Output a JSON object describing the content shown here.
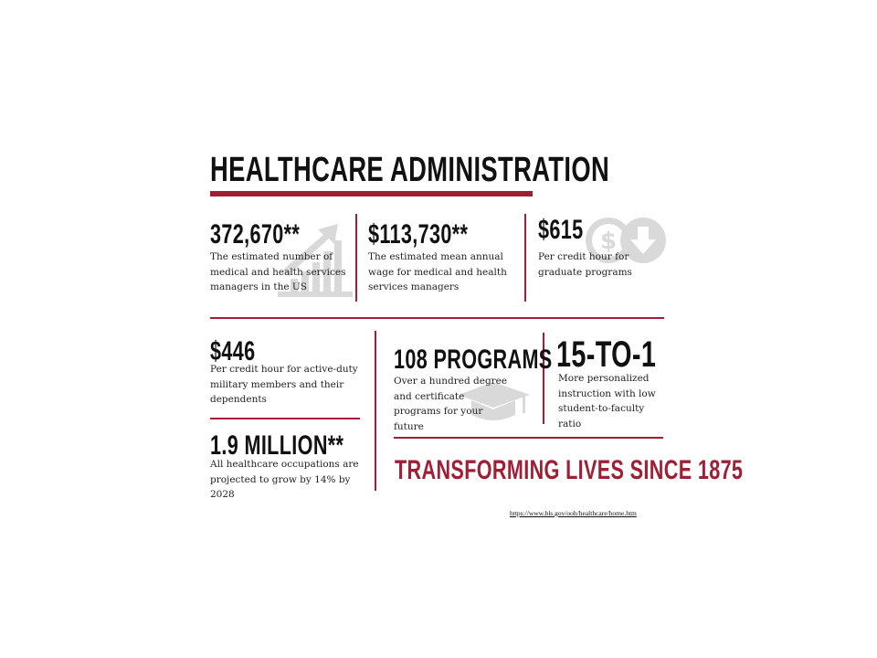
{
  "title": "HEALTHCARE ADMINISTRATION",
  "accent_color": "#a01f35",
  "icon_color": "#d9d9d9",
  "stats": {
    "managers": {
      "value": "372,670**",
      "description": "The estimated number of medical and health services managers in the US",
      "icon": "growth-chart-icon"
    },
    "wage": {
      "value": "$113,730**",
      "description": "The estimated mean annual wage for medical and health services managers"
    },
    "graduate": {
      "value": "$615",
      "description": "Per credit hour for graduate programs",
      "icon": "dollar-down-icon"
    },
    "military": {
      "value": "$446",
      "description": "Per credit hour for active-duty military members and their dependents"
    },
    "occupations": {
      "value": "1.9 MILLION**",
      "description": "All healthcare occupations are projected to grow by 14% by 2028"
    },
    "programs": {
      "value": "108 PROGRAMS",
      "description": "Over a hundred degree and certificate programs for your future",
      "icon": "graduation-cap-icon"
    },
    "ratio": {
      "value": "15-TO-1",
      "description": "More personalized instruction with low student-to-faculty ratio"
    }
  },
  "tagline": "TRANSFORMING LIVES SINCE 1875",
  "source_link": "https://www.bls.gov/ooh/healthcare/home.htm"
}
